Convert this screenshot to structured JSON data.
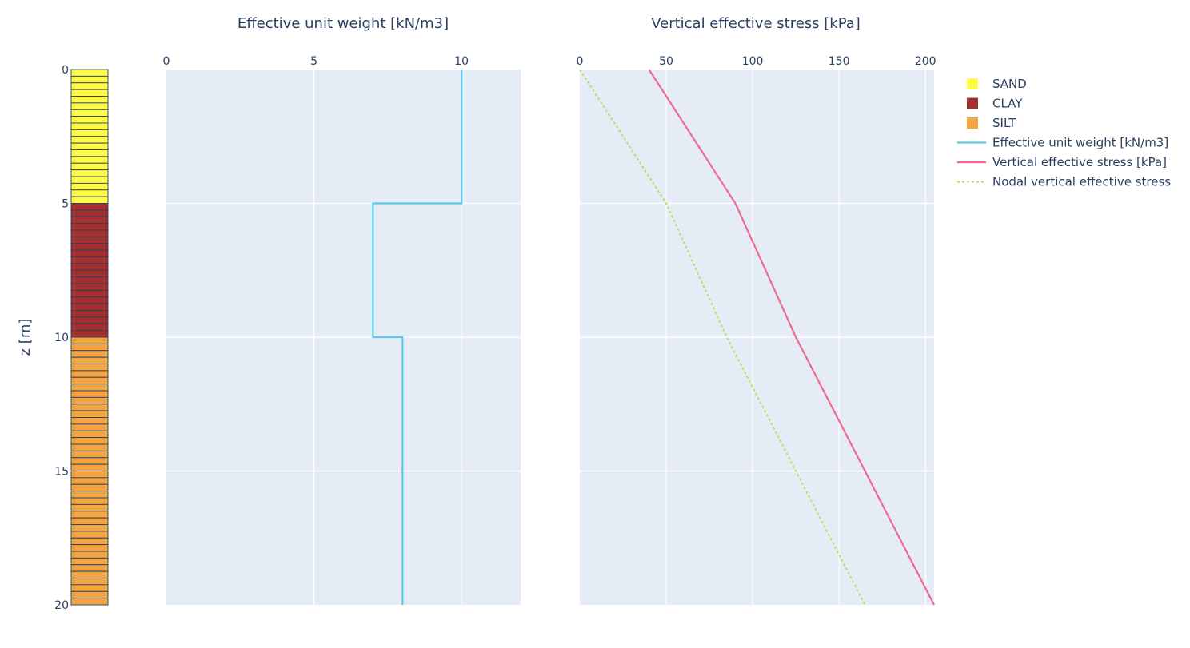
{
  "chart_data": [
    {
      "type": "bar",
      "name": "soil-column",
      "ylabel": "z [m]",
      "ylim": [
        20,
        0
      ],
      "yticks": [
        0,
        5,
        10,
        15,
        20
      ],
      "layers": [
        {
          "label": "SAND",
          "z_top": 0,
          "z_bottom": 5,
          "color": "#fffb45",
          "n_elements": 20
        },
        {
          "label": "CLAY",
          "z_top": 5,
          "z_bottom": 10,
          "color": "#a3302d",
          "n_elements": 20
        },
        {
          "label": "SILT",
          "z_top": 10,
          "z_bottom": 20,
          "color": "#f2a541",
          "n_elements": 40
        }
      ]
    },
    {
      "type": "line",
      "title": "Effective unit weight [kN/m3]",
      "xlim": [
        0,
        12
      ],
      "xticks": [
        0,
        5,
        10
      ],
      "ylim": [
        20,
        0
      ],
      "series": [
        {
          "name": "Effective unit weight [kN/m3]",
          "color": "#5bc8ea",
          "x": [
            10,
            10,
            7,
            7,
            8,
            8
          ],
          "y": [
            0,
            5,
            5,
            10,
            10,
            20
          ]
        }
      ]
    },
    {
      "type": "line",
      "title": "Vertical effective stress [kPa]",
      "xlim": [
        0,
        205
      ],
      "xticks": [
        0,
        50,
        100,
        150,
        200
      ],
      "ylim": [
        20,
        0
      ],
      "series": [
        {
          "name": "Vertical effective stress [kPa]",
          "color": "#ef6b8e",
          "dash": "solid",
          "x": [
            40,
            90,
            125,
            205
          ],
          "y": [
            0,
            5,
            10,
            20
          ]
        },
        {
          "name": "Nodal vertical effective stress",
          "color": "#b6e05e",
          "dash": "dot",
          "x": [
            0,
            50,
            85,
            165
          ],
          "y": [
            0,
            5,
            10,
            20
          ]
        }
      ]
    }
  ],
  "legend": {
    "position": "top-right",
    "items": [
      {
        "label": "SAND",
        "kind": "square",
        "color": "#fffb45"
      },
      {
        "label": "CLAY",
        "kind": "square",
        "color": "#a3302d"
      },
      {
        "label": "SILT",
        "kind": "square",
        "color": "#f2a541"
      },
      {
        "label": "Effective unit weight [kN/m3]",
        "kind": "line",
        "color": "#5bc8ea"
      },
      {
        "label": "Vertical effective stress [kPa]",
        "kind": "line",
        "color": "#ef6b8e"
      },
      {
        "label": "Nodal vertical effective stress",
        "kind": "dot",
        "color": "#b6e05e"
      }
    ]
  },
  "colors": {
    "plot_bg": "#e5ecf6",
    "grid": "#ffffff",
    "text": "#2a3f5f",
    "element_border": "#2a3f5f"
  }
}
